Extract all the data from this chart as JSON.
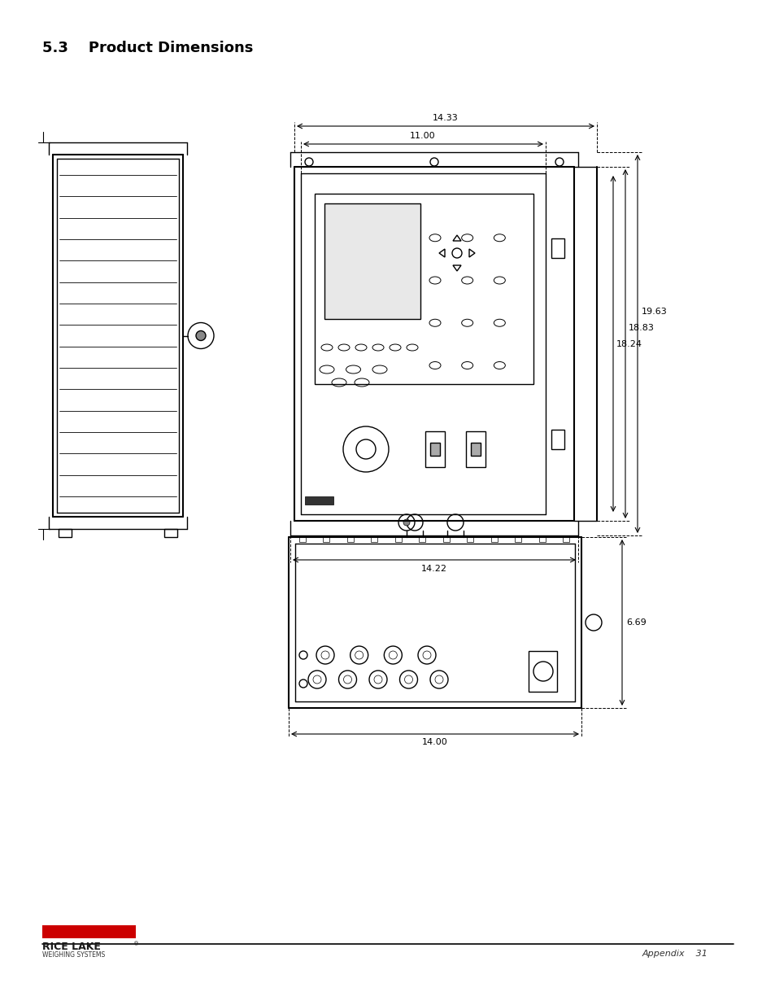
{
  "title": "5.3    Product Dimensions",
  "footer_right": "Appendix    31",
  "bg_color": "#ffffff",
  "line_color": "#000000",
  "dim_14_33": "14.33",
  "dim_11_00": "11.00",
  "dim_19_63": "19.63",
  "dim_18_83": "18.83",
  "dim_18_24": "18.24",
  "dim_14_22": "14.22",
  "dim_14_00": "14.00",
  "dim_6_69": "6.69"
}
